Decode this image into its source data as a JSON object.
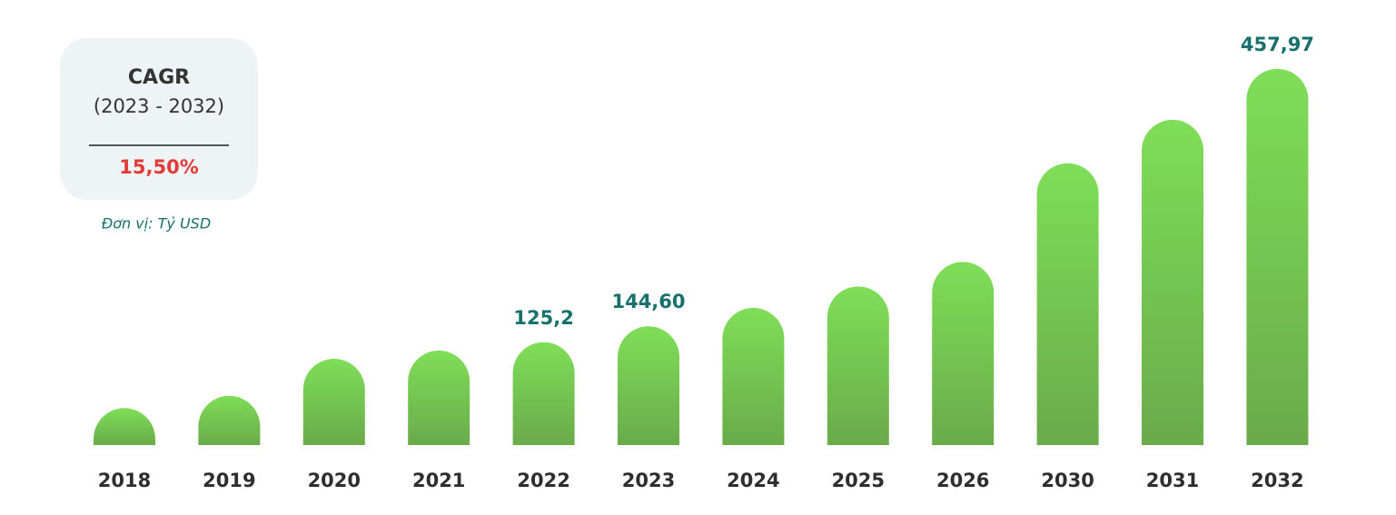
{
  "chart_data": {
    "type": "bar",
    "categories": [
      "2018",
      "2019",
      "2020",
      "2021",
      "2022",
      "2023",
      "2024",
      "2025",
      "2026",
      "2030",
      "2031",
      "2032"
    ],
    "values": [
      45,
      60,
      105,
      115,
      125.2,
      144.6,
      167,
      193,
      223,
      343,
      396,
      457.97
    ],
    "value_labels": [
      null,
      null,
      null,
      null,
      "125,2",
      "144,60",
      null,
      null,
      null,
      null,
      null,
      "457,97"
    ],
    "color_top": "#7fde58",
    "color_bottom": "#69ab4a",
    "ylim": [
      0,
      460
    ],
    "grid": false,
    "cagr_title": "CAGR",
    "cagr_period": "(2023 - 2032)",
    "cagr_value": "15,50%",
    "unit_note": "Đơn vị: Tỷ USD"
  }
}
